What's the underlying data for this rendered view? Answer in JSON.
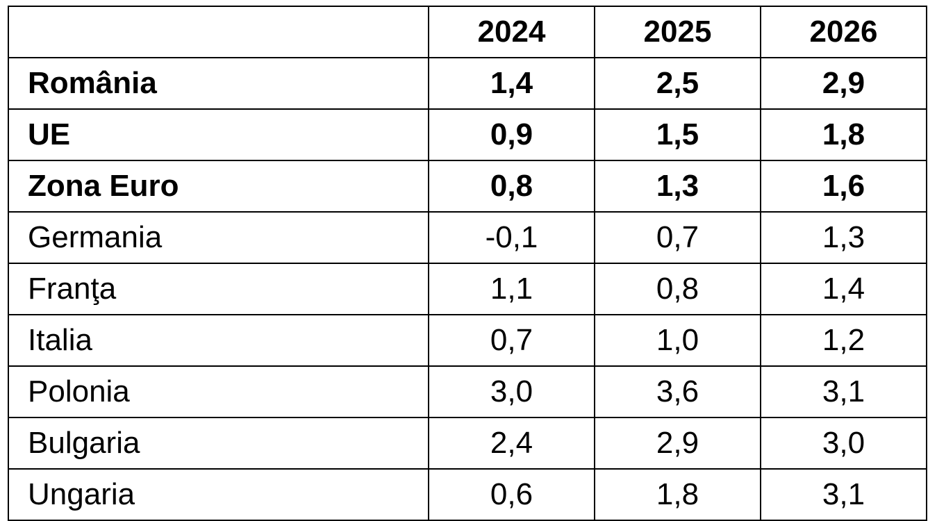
{
  "table": {
    "columns": [
      "",
      "2024",
      "2025",
      "2026"
    ],
    "rows": [
      {
        "label": "România",
        "bold": true,
        "values": [
          "1,4",
          "2,5",
          "2,9"
        ]
      },
      {
        "label": "UE",
        "bold": true,
        "values": [
          "0,9",
          "1,5",
          "1,8"
        ]
      },
      {
        "label": "Zona Euro",
        "bold": true,
        "values": [
          "0,8",
          "1,3",
          "1,6"
        ]
      },
      {
        "label": "Germania",
        "bold": false,
        "values": [
          "-0,1",
          "0,7",
          "1,3"
        ]
      },
      {
        "label": "Franţa",
        "bold": false,
        "values": [
          "1,1",
          "0,8",
          "1,4"
        ]
      },
      {
        "label": "Italia",
        "bold": false,
        "values": [
          "0,7",
          "1,0",
          "1,2"
        ]
      },
      {
        "label": "Polonia",
        "bold": false,
        "values": [
          "3,0",
          "3,6",
          "3,1"
        ]
      },
      {
        "label": "Bulgaria",
        "bold": false,
        "values": [
          "2,4",
          "2,9",
          "3,0"
        ]
      },
      {
        "label": "Ungaria",
        "bold": false,
        "values": [
          "0,6",
          "1,8",
          "3,1"
        ]
      }
    ]
  }
}
